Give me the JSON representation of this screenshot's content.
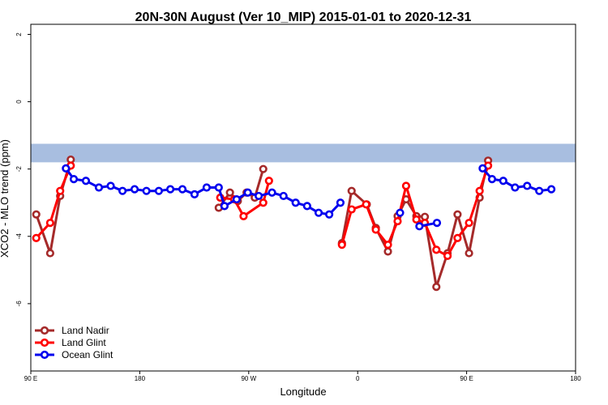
{
  "chart_data": {
    "type": "line",
    "title": "20N-30N August (Ver 10_MIP)   2015-01-01 to 2020-12-31",
    "xlabel": "Longitude",
    "ylabel": "XCO2 - MLO trend (ppm)",
    "xlim": [
      -180,
      180
    ],
    "ylim": [
      -8,
      2.3
    ],
    "x_ticks": [
      {
        "value": -180,
        "label": "90 E"
      },
      {
        "value": -108,
        "label": "180"
      },
      {
        "value": -36,
        "label": "90 W"
      },
      {
        "value": 36,
        "label": "0"
      },
      {
        "value": 108,
        "label": "90 E"
      },
      {
        "value": 180,
        "label": "180"
      }
    ],
    "y_ticks": [
      {
        "value": 2,
        "label": "2"
      },
      {
        "value": 0,
        "label": "0"
      },
      {
        "value": -2,
        "label": "-2"
      },
      {
        "value": -4,
        "label": "-4"
      },
      {
        "value": -6,
        "label": "-6"
      }
    ],
    "map_band": {
      "y_top": -1.25,
      "y_bottom": -1.8,
      "ocean_color": "#a8bee0",
      "land_color": "#f6d67c"
    },
    "legend": {
      "position": "bottom-left"
    },
    "series": [
      {
        "name": "Land Nadir",
        "color": "#a52a2a",
        "segments": [
          [
            [
              -176.4,
              -3.35
            ],
            [
              -167.2,
              -4.5
            ],
            [
              -160.6,
              -2.8
            ],
            [
              -153.6,
              -1.72
            ]
          ],
          [
            [
              -55.8,
              -3.15
            ],
            [
              -48.4,
              -2.7
            ],
            [
              -43.2,
              -2.95
            ],
            [
              -37.4,
              -2.7
            ],
            [
              -32.0,
              -2.85
            ],
            [
              -26.4,
              -2.0
            ]
          ],
          [
            [
              25.6,
              -4.2
            ],
            [
              32.0,
              -2.65
            ],
            [
              42.0,
              -3.05
            ],
            [
              48.0,
              -3.75
            ],
            [
              56.0,
              -4.45
            ],
            [
              62.4,
              -3.4
            ],
            [
              68.0,
              -2.9
            ],
            [
              74.8,
              -3.4
            ],
            [
              80.4,
              -3.42
            ],
            [
              88.0,
              -5.5
            ],
            [
              95.4,
              -4.5
            ],
            [
              102.0,
              -3.35
            ],
            [
              109.6,
              -4.5
            ],
            [
              116.6,
              -2.85
            ],
            [
              122.2,
              -1.75
            ]
          ]
        ]
      },
      {
        "name": "Land Glint",
        "color": "#ff0000",
        "segments": [
          [
            [
              -176.4,
              -4.05
            ],
            [
              -167.2,
              -3.6
            ],
            [
              -160.6,
              -2.65
            ],
            [
              -153.6,
              -1.9
            ]
          ],
          [
            [
              -54.8,
              -2.85
            ],
            [
              -45.6,
              -2.9
            ],
            [
              -39.4,
              -3.4
            ],
            [
              -26.4,
              -3.0
            ],
            [
              -22.6,
              -2.35
            ]
          ],
          [
            [
              25.6,
              -4.25
            ],
            [
              32.0,
              -3.2
            ],
            [
              41.6,
              -3.05
            ],
            [
              48.0,
              -3.8
            ],
            [
              56.0,
              -4.25
            ],
            [
              62.4,
              -3.55
            ],
            [
              68.0,
              -2.5
            ],
            [
              74.8,
              -3.5
            ],
            [
              80.4,
              -3.6
            ],
            [
              88.0,
              -4.4
            ],
            [
              95.4,
              -4.58
            ],
            [
              102.0,
              -4.05
            ],
            [
              109.6,
              -3.6
            ],
            [
              116.6,
              -2.65
            ],
            [
              122.2,
              -1.9
            ]
          ]
        ]
      },
      {
        "name": "Ocean Glint",
        "color": "#0000ee",
        "segments": [
          [
            [
              -156.8,
              -1.98
            ],
            [
              -151.6,
              -2.3
            ],
            [
              -143.6,
              -2.35
            ],
            [
              -135.0,
              -2.55
            ],
            [
              -127.2,
              -2.5
            ],
            [
              -119.4,
              -2.65
            ],
            [
              -111.4,
              -2.6
            ],
            [
              -103.6,
              -2.65
            ],
            [
              -95.4,
              -2.65
            ],
            [
              -87.8,
              -2.6
            ],
            [
              -79.8,
              -2.6
            ],
            [
              -71.8,
              -2.75
            ],
            [
              -63.8,
              -2.55
            ],
            [
              -55.8,
              -2.55
            ],
            [
              -52.0,
              -3.1
            ],
            [
              -44.0,
              -2.9
            ],
            [
              -36.6,
              -2.7
            ],
            [
              -29.4,
              -2.8
            ],
            [
              -20.6,
              -2.7
            ],
            [
              -13.0,
              -2.8
            ],
            [
              -5.0,
              -3.0
            ],
            [
              2.6,
              -3.1
            ],
            [
              10.2,
              -3.3
            ],
            [
              17.2,
              -3.35
            ],
            [
              24.6,
              -3.0
            ]
          ],
          [
            [
              64.0,
              -3.3
            ]
          ],
          [
            [
              76.8,
              -3.7
            ],
            [
              88.4,
              -3.6
            ]
          ],
          [
            [
              118.6,
              -1.98
            ],
            [
              124.8,
              -2.3
            ],
            [
              132.2,
              -2.35
            ],
            [
              140.0,
              -2.55
            ],
            [
              148.0,
              -2.5
            ],
            [
              156.0,
              -2.65
            ],
            [
              164.0,
              -2.6
            ]
          ]
        ]
      }
    ]
  }
}
